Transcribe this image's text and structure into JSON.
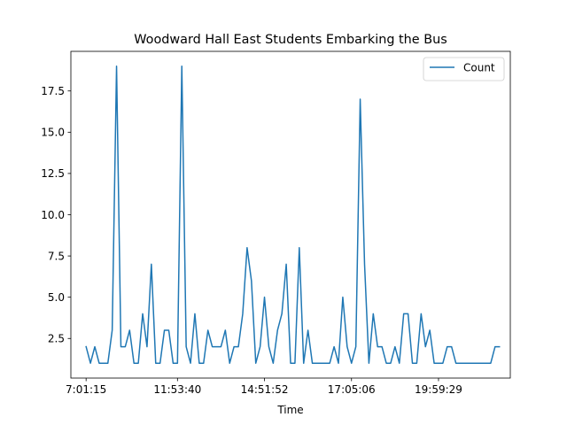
{
  "chart_data": {
    "type": "line",
    "title": "Woodward Hall East Students Embarking the Bus",
    "xlabel": "Time",
    "ylabel": "",
    "x_ticks": [
      {
        "index": 0,
        "label": "7:01:15"
      },
      {
        "index": 21,
        "label": "11:53:40"
      },
      {
        "index": 41,
        "label": "14:51:52"
      },
      {
        "index": 61,
        "label": "17:05:06"
      },
      {
        "index": 81,
        "label": "19:59:29"
      }
    ],
    "yticks": [
      2.5,
      5.0,
      7.5,
      10.0,
      12.5,
      15.0,
      17.5
    ],
    "ylim": [
      0.1,
      19.9
    ],
    "xlim": [
      -3.5,
      97.5
    ],
    "grid": false,
    "legend_position": "top-right",
    "series": [
      {
        "name": "Count",
        "color": "#1f77b4",
        "values": [
          2,
          1,
          2,
          1,
          1,
          1,
          3,
          19,
          2,
          2,
          3,
          1,
          1,
          4,
          2,
          7,
          1,
          1,
          3,
          3,
          1,
          1,
          19,
          2,
          1,
          4,
          1,
          1,
          3,
          2,
          2,
          2,
          3,
          1,
          2,
          2,
          4,
          8,
          6,
          1,
          2,
          5,
          2,
          1,
          3,
          4,
          7,
          1,
          1,
          8,
          1,
          3,
          1,
          1,
          1,
          1,
          1,
          2,
          1,
          5,
          2,
          1,
          2,
          17,
          7,
          1,
          4,
          2,
          2,
          1,
          1,
          2,
          1,
          4,
          4,
          1,
          1,
          4,
          2,
          3,
          1,
          1,
          1,
          2,
          2,
          1,
          1,
          1,
          1,
          1,
          1,
          1,
          1,
          1,
          2,
          2
        ]
      }
    ]
  }
}
